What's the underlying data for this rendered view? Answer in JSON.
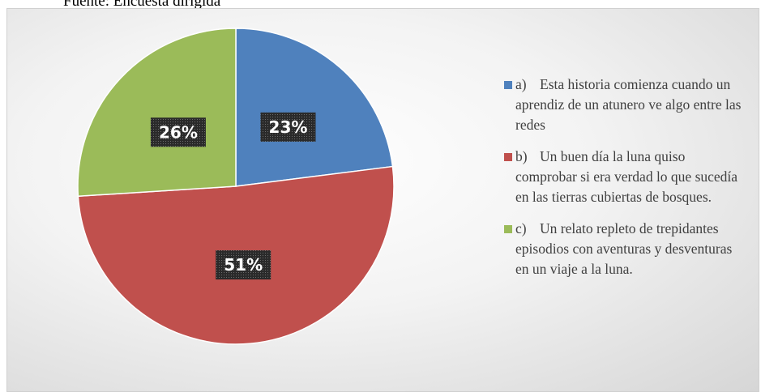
{
  "source": "Fuente: Encuesta dirigida",
  "chart_data": {
    "type": "pie",
    "series": [
      {
        "name": "a)\tEsta historia comienza cuando un aprendiz de un atunero ve algo entre las redes",
        "color": "#4f81bd",
        "values": [
          23
        ],
        "value_labels": [
          "23%"
        ]
      },
      {
        "name": "b)\tUn buen día la luna quiso comprobar si era verdad lo que sucedía en las tierras cubiertas de bosques.",
        "color": "#c0504d",
        "values": [
          51
        ],
        "value_labels": [
          "51%"
        ]
      },
      {
        "name": "c)\tUn relato repleto de trepidantes episodios con aventuras y desventuras en un viaje a la luna.",
        "color": "#9bbb59",
        "values": [
          26
        ],
        "value_labels": [
          "26%"
        ]
      }
    ],
    "legend": "right"
  }
}
